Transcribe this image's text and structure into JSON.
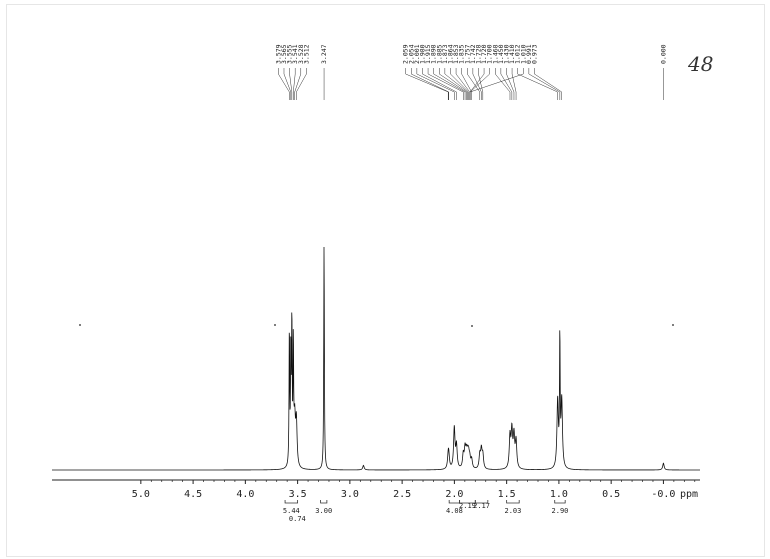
{
  "page": {
    "handwritten_note": "48"
  },
  "chart_data": {
    "type": "line",
    "title": "",
    "xlabel": "ppm",
    "ylabel": "",
    "x_reversed": true,
    "xlim": [
      5.85,
      -0.35
    ],
    "ylim": [
      0,
      100
    ],
    "ticks": [
      {
        "value": 5.0,
        "label": "5.0"
      },
      {
        "value": 4.5,
        "label": "4.5"
      },
      {
        "value": 4.0,
        "label": "4.0"
      },
      {
        "value": 3.5,
        "label": "3.5"
      },
      {
        "value": 3.0,
        "label": "3.0"
      },
      {
        "value": 2.5,
        "label": "2.5"
      },
      {
        "value": 2.0,
        "label": "2.0"
      },
      {
        "value": 1.5,
        "label": "1.5"
      },
      {
        "value": 1.0,
        "label": "1.0"
      },
      {
        "value": 0.5,
        "label": "0.5"
      },
      {
        "value": 0.0,
        "label": "-0.0"
      }
    ],
    "peaks": [
      {
        "shift": 3.579,
        "height": 60
      },
      {
        "shift": 3.565,
        "height": 48
      },
      {
        "shift": 3.555,
        "height": 62
      },
      {
        "shift": 3.541,
        "height": 52
      },
      {
        "shift": 3.528,
        "height": 20
      },
      {
        "shift": 3.512,
        "height": 20
      },
      {
        "shift": 3.247,
        "height": 100
      },
      {
        "shift": 2.87,
        "height": 2
      },
      {
        "shift": 2.059,
        "height": 5
      },
      {
        "shift": 2.054,
        "height": 5
      },
      {
        "shift": 2.001,
        "height": 18
      },
      {
        "shift": 1.98,
        "height": 10
      },
      {
        "shift": 1.915,
        "height": 6
      },
      {
        "shift": 1.898,
        "height": 8
      },
      {
        "shift": 1.885,
        "height": 6
      },
      {
        "shift": 1.873,
        "height": 5
      },
      {
        "shift": 1.864,
        "height": 5
      },
      {
        "shift": 1.853,
        "height": 4
      },
      {
        "shift": 1.835,
        "height": 4
      },
      {
        "shift": 1.757,
        "height": 6
      },
      {
        "shift": 1.742,
        "height": 8
      },
      {
        "shift": 1.728,
        "height": 6
      },
      {
        "shift": 1.468,
        "height": 14
      },
      {
        "shift": 1.45,
        "height": 16
      },
      {
        "shift": 1.43,
        "height": 14
      },
      {
        "shift": 1.41,
        "height": 12
      },
      {
        "shift": 1.012,
        "height": 30
      },
      {
        "shift": 0.991,
        "height": 56
      },
      {
        "shift": 0.973,
        "height": 30
      },
      {
        "shift": 0.0,
        "height": 3
      }
    ],
    "peak_label_groups": [
      {
        "labels": [
          "3.579",
          "3.565",
          "3.555",
          "3.541",
          "3.528",
          "3.512"
        ],
        "target_ppm": 3.55
      },
      {
        "labels": [
          "3.247"
        ],
        "target_ppm": 3.247
      },
      {
        "labels": [
          "2.059",
          "2.054",
          "2.001",
          "1.980",
          "1.915",
          "1.898",
          "1.885",
          "1.873",
          "1.864",
          "1.853",
          "1.835",
          "1.757",
          "1.742",
          "1.728",
          "1.720",
          "1.700",
          "1.468",
          "1.450",
          "1.430",
          "1.410",
          "1.012",
          "1.010",
          "0.991",
          "0.973"
        ],
        "target_ppm": 1.85
      },
      {
        "labels": [
          "0.000"
        ],
        "target_ppm": 0.0
      }
    ],
    "integrals": [
      {
        "from": 3.62,
        "to": 3.5,
        "labels": [
          "5.44",
          "0.74"
        ]
      },
      {
        "from": 3.28,
        "to": 3.22,
        "labels": [
          "3.00"
        ]
      },
      {
        "from": 2.05,
        "to": 1.95,
        "labels": [
          "4.08"
        ]
      },
      {
        "from": 1.95,
        "to": 1.8,
        "labels": [
          "2.19"
        ]
      },
      {
        "from": 1.8,
        "to": 1.68,
        "labels": [
          "2.17"
        ]
      },
      {
        "from": 1.5,
        "to": 1.38,
        "labels": [
          "2.03"
        ]
      },
      {
        "from": 1.04,
        "to": 0.94,
        "labels": [
          "2.90"
        ]
      }
    ]
  }
}
